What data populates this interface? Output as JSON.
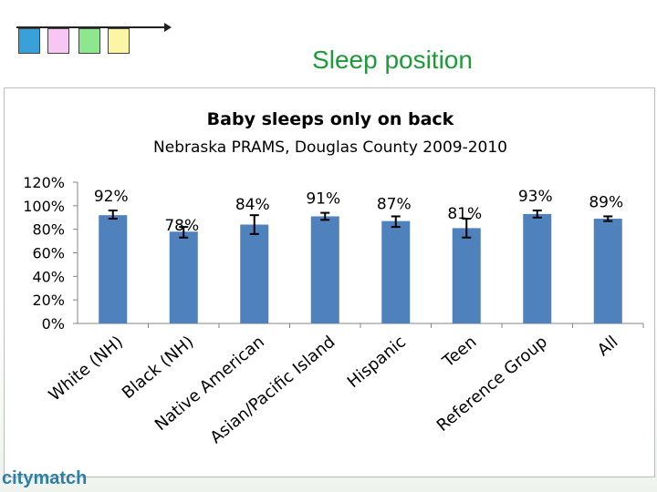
{
  "slide": {
    "title": "Sleep position",
    "logo_text": "citymatch",
    "squares": [
      "#3aa0d8",
      "#f7c6f3",
      "#8ee68e",
      "#fbf6a6"
    ]
  },
  "chart_data": {
    "type": "bar",
    "title": "Baby sleeps only on back",
    "subtitle": "Nebraska PRAMS, Douglas County 2009-2010",
    "xlabel": "",
    "ylabel": "",
    "categories": [
      "White (NH)",
      "Black (NH)",
      "Native American",
      "Asian/Pacific Island",
      "Hispanic",
      "Teen",
      "Reference Group",
      "All"
    ],
    "values": [
      92,
      78,
      84,
      91,
      87,
      81,
      93,
      89
    ],
    "data_labels": [
      "92%",
      "78%",
      "84%",
      "91%",
      "87%",
      "81%",
      "93%",
      "89%"
    ],
    "error_low": [
      89,
      73,
      76,
      88,
      82,
      73,
      90,
      87
    ],
    "error_high": [
      96,
      82,
      92,
      94,
      91,
      89,
      96,
      91
    ],
    "ylim": [
      0,
      120
    ],
    "yticks": [
      0,
      20,
      40,
      60,
      80,
      100,
      120
    ],
    "ytick_labels": [
      "0%",
      "20%",
      "40%",
      "60%",
      "80%",
      "100%",
      "120%"
    ],
    "bar_color": "#4f81bd",
    "grid": false,
    "legend": "none"
  }
}
